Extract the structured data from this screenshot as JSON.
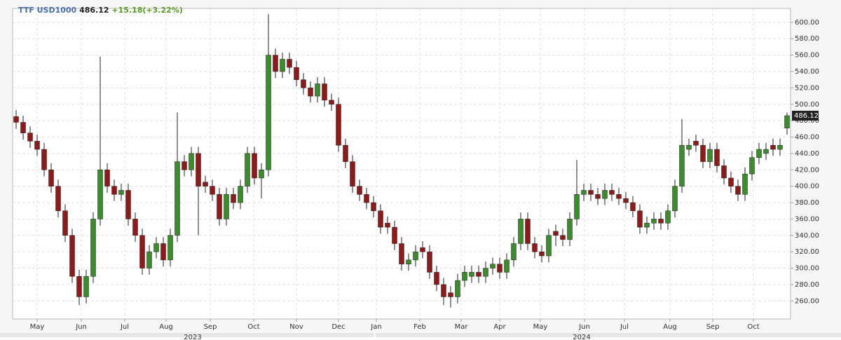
{
  "chart_data": {
    "type": "candlestick",
    "legend": {
      "symbol": "TTF USD1000",
      "price": 486.12,
      "change": "+15.18(+3.22%)"
    },
    "up_color": "#3c8c2e",
    "down_color": "#8c1c1c",
    "grid": true,
    "xlim": [
      0,
      111
    ],
    "xticks": [
      {
        "value": 3.5,
        "label": "May"
      },
      {
        "value": 9.8,
        "label": "Jun"
      },
      {
        "value": 16,
        "label": "Jul"
      },
      {
        "value": 21.9,
        "label": "Aug"
      },
      {
        "value": 28.2,
        "label": "Sep"
      },
      {
        "value": 34.4,
        "label": "Oct"
      },
      {
        "value": 40.5,
        "label": "Nov"
      },
      {
        "value": 46.5,
        "label": "Dec"
      },
      {
        "value": 51.9,
        "label": "Jan"
      },
      {
        "value": 58.1,
        "label": "Feb"
      },
      {
        "value": 64,
        "label": "Mar"
      },
      {
        "value": 69.5,
        "label": "Apr"
      },
      {
        "value": 75.3,
        "label": "May"
      },
      {
        "value": 81.6,
        "label": "Jun"
      },
      {
        "value": 87.3,
        "label": "Jul"
      },
      {
        "value": 93.8,
        "label": "Aug"
      },
      {
        "value": 99.9,
        "label": "Sep"
      },
      {
        "value": 105.7,
        "label": "Oct"
      }
    ],
    "years": [
      {
        "value": 25.7,
        "label": "2023"
      },
      {
        "value": 81.2,
        "label": "2024"
      }
    ],
    "ylim": [
      238,
      617
    ],
    "yticks": [
      {
        "value": 260,
        "label": "260.00"
      },
      {
        "value": 280,
        "label": "280.00"
      },
      {
        "value": 300,
        "label": "300.00"
      },
      {
        "value": 320,
        "label": "320.00"
      },
      {
        "value": 340,
        "label": "340.00"
      },
      {
        "value": 360,
        "label": "360.00"
      },
      {
        "value": 380,
        "label": "380.00"
      },
      {
        "value": 400,
        "label": "400.00"
      },
      {
        "value": 420,
        "label": "420.00"
      },
      {
        "value": 440,
        "label": "440.00"
      },
      {
        "value": 460,
        "label": "460.00"
      },
      {
        "value": 480,
        "label": "480.00"
      },
      {
        "value": 500,
        "label": "500.00"
      },
      {
        "value": 520,
        "label": "520.00"
      },
      {
        "value": 540,
        "label": "540.00"
      },
      {
        "value": 560,
        "label": "560.00"
      },
      {
        "value": 580,
        "label": "580.00"
      },
      {
        "value": 600,
        "label": "600.00"
      }
    ],
    "open": [
      485,
      478,
      465,
      455,
      445,
      420,
      400,
      370,
      340,
      290,
      265,
      290,
      360,
      420,
      400,
      390,
      395,
      360,
      340,
      300,
      320,
      330,
      310,
      340,
      430,
      420,
      440,
      405,
      400,
      390,
      360,
      390,
      380,
      400,
      440,
      410,
      420,
      560,
      540,
      555,
      545,
      530,
      520,
      510,
      525,
      505,
      500,
      450,
      430,
      400,
      390,
      380,
      370,
      355,
      350,
      330,
      305,
      310,
      325,
      320,
      295,
      280,
      270,
      265,
      285,
      290,
      295,
      290,
      300,
      305,
      295,
      310,
      330,
      360,
      330,
      320,
      315,
      345,
      340,
      335,
      360,
      390,
      395,
      390,
      385,
      395,
      390,
      385,
      380,
      370,
      350,
      355,
      360,
      355,
      370,
      400,
      445,
      455,
      450,
      430,
      445,
      425,
      410,
      400,
      390,
      415,
      435,
      440,
      450,
      445,
      470.94
    ],
    "high": [
      493,
      486,
      473,
      463,
      453,
      428,
      408,
      378,
      348,
      298,
      298,
      368,
      558,
      428,
      408,
      403,
      403,
      368,
      348,
      328,
      338,
      338,
      348,
      490,
      438,
      448,
      448,
      413,
      408,
      398,
      398,
      398,
      408,
      448,
      448,
      428,
      610,
      568,
      563,
      563,
      553,
      538,
      528,
      533,
      533,
      513,
      508,
      458,
      438,
      408,
      398,
      388,
      378,
      363,
      358,
      338,
      318,
      328,
      333,
      328,
      303,
      288,
      278,
      293,
      303,
      303,
      303,
      308,
      313,
      313,
      318,
      338,
      368,
      368,
      338,
      328,
      348,
      353,
      348,
      368,
      432,
      403,
      403,
      398,
      403,
      403,
      398,
      393,
      388,
      378,
      363,
      368,
      368,
      378,
      408,
      482,
      458,
      463,
      458,
      453,
      453,
      433,
      418,
      408,
      423,
      443,
      453,
      453,
      458,
      458,
      490
    ],
    "low": [
      470,
      457,
      447,
      437,
      412,
      392,
      362,
      332,
      282,
      255,
      257,
      282,
      352,
      392,
      382,
      382,
      352,
      332,
      292,
      292,
      312,
      302,
      302,
      332,
      412,
      412,
      340,
      392,
      382,
      352,
      352,
      372,
      372,
      392,
      402,
      385,
      412,
      532,
      532,
      537,
      522,
      512,
      502,
      502,
      497,
      492,
      442,
      422,
      392,
      382,
      372,
      362,
      342,
      342,
      322,
      297,
      297,
      302,
      312,
      287,
      272,
      255,
      252,
      257,
      277,
      282,
      282,
      282,
      292,
      287,
      287,
      302,
      322,
      322,
      312,
      307,
      307,
      327,
      327,
      327,
      352,
      382,
      382,
      377,
      377,
      382,
      377,
      372,
      362,
      342,
      342,
      347,
      347,
      347,
      362,
      392,
      437,
      442,
      422,
      422,
      417,
      402,
      392,
      382,
      382,
      407,
      427,
      432,
      437,
      437,
      463
    ],
    "close": [
      478,
      465,
      455,
      445,
      420,
      400,
      370,
      340,
      290,
      265,
      290,
      360,
      420,
      400,
      390,
      395,
      360,
      340,
      300,
      320,
      330,
      310,
      340,
      430,
      420,
      440,
      400,
      400,
      390,
      360,
      390,
      380,
      400,
      440,
      410,
      420,
      560,
      540,
      555,
      545,
      530,
      520,
      510,
      525,
      505,
      500,
      450,
      430,
      400,
      390,
      380,
      370,
      350,
      350,
      330,
      305,
      310,
      320,
      320,
      295,
      280,
      265,
      265,
      285,
      295,
      295,
      290,
      300,
      305,
      295,
      310,
      330,
      360,
      330,
      320,
      315,
      340,
      340,
      335,
      360,
      390,
      395,
      390,
      385,
      395,
      390,
      385,
      380,
      370,
      350,
      355,
      360,
      355,
      370,
      400,
      450,
      450,
      450,
      430,
      445,
      425,
      410,
      400,
      390,
      415,
      435,
      445,
      445,
      445,
      450,
      486.12
    ]
  }
}
